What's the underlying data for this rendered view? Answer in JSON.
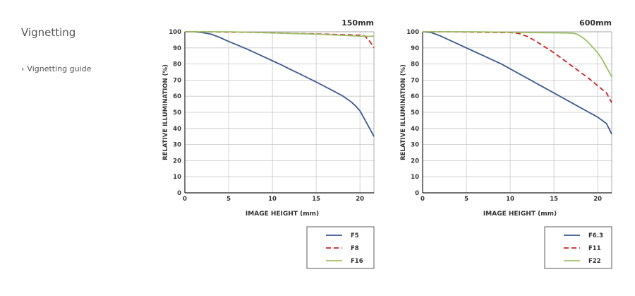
{
  "sidebar": {
    "title": "Vignetting",
    "link_label": "Vignetting guide",
    "link_chevron": "›"
  },
  "chart_data": [
    {
      "type": "line",
      "title": "150mm",
      "xlabel": "IMAGE HEIGHT (mm)",
      "ylabel": "RELATIVE ILLUMINATION (%)",
      "xlim": [
        0,
        21.6
      ],
      "ylim": [
        0,
        100
      ],
      "xticks": [
        0,
        5,
        10,
        15,
        20
      ],
      "yticks": [
        0,
        10,
        20,
        30,
        40,
        50,
        60,
        70,
        80,
        90,
        100
      ],
      "grid": true,
      "legend_position": "bottom-right",
      "series": [
        {
          "name": "F5",
          "color": "#3b5a8c",
          "dash": "solid",
          "x": [
            0,
            1,
            2,
            3,
            4,
            5,
            6,
            7,
            8,
            9,
            10,
            11,
            12,
            13,
            14,
            15,
            16,
            17,
            18,
            19,
            19.5,
            20,
            20.5,
            21,
            21.6
          ],
          "y": [
            100,
            100,
            99.5,
            98.5,
            96.5,
            94,
            91.8,
            89.5,
            87,
            84.5,
            82,
            79.5,
            76.8,
            74.2,
            71.5,
            68.8,
            66,
            63.2,
            60.3,
            56.5,
            54,
            51,
            46,
            41,
            35
          ]
        },
        {
          "name": "F8",
          "color": "#cc2222",
          "dash": "dashed",
          "x": [
            0,
            2,
            5,
            8,
            10,
            12,
            15,
            18,
            20,
            20.5,
            21,
            21.6
          ],
          "y": [
            100,
            100,
            99.8,
            99.6,
            99.4,
            99.1,
            98.7,
            98.2,
            97.9,
            97.5,
            95,
            90
          ]
        },
        {
          "name": "F16",
          "color": "#9bbf66",
          "dash": "solid",
          "x": [
            0,
            2,
            5,
            8,
            10,
            12,
            15,
            18,
            20,
            21,
            21.6
          ],
          "y": [
            100,
            100,
            100,
            99.6,
            99.3,
            99,
            98.5,
            97.8,
            97.3,
            97.2,
            97.3
          ]
        }
      ]
    },
    {
      "type": "line",
      "title": "600mm",
      "xlabel": "IMAGE HEIGHT (mm)",
      "ylabel": "RELATIVE ILLUMINATION (%)",
      "xlim": [
        0,
        21.6
      ],
      "ylim": [
        0,
        100
      ],
      "xticks": [
        0,
        5,
        10,
        15,
        20
      ],
      "yticks": [
        0,
        10,
        20,
        30,
        40,
        50,
        60,
        70,
        80,
        90,
        100
      ],
      "grid": true,
      "legend_position": "bottom-right",
      "series": [
        {
          "name": "F6.3",
          "color": "#3b5a8c",
          "dash": "solid",
          "x": [
            0,
            1,
            2,
            3,
            4,
            5,
            6,
            7,
            8,
            9,
            10,
            11,
            12,
            13,
            14,
            15,
            16,
            17,
            18,
            19,
            20,
            20.5,
            21,
            21.6
          ],
          "y": [
            100,
            99.5,
            97.5,
            95,
            92.5,
            90,
            87.5,
            85,
            82.5,
            80,
            77,
            74,
            71,
            68,
            65,
            62,
            59,
            56,
            53,
            50,
            47,
            45,
            43,
            36.5
          ]
        },
        {
          "name": "F11",
          "color": "#cc2222",
          "dash": "dashed",
          "x": [
            0,
            3,
            6,
            9,
            10,
            11,
            12,
            13,
            14,
            15,
            16,
            17,
            18,
            19,
            20,
            21,
            21.6
          ],
          "y": [
            100,
            100,
            99.8,
            99.5,
            99.5,
            99,
            97,
            94,
            90.5,
            87,
            83,
            79,
            75,
            71,
            66.5,
            62,
            56
          ]
        },
        {
          "name": "F22",
          "color": "#9bbf66",
          "dash": "solid",
          "x": [
            0,
            3,
            6,
            9,
            12,
            15,
            16,
            17,
            17.5,
            18,
            18.5,
            19,
            19.5,
            20,
            20.5,
            21,
            21.6
          ],
          "y": [
            100,
            100,
            100,
            99.8,
            99.5,
            99.4,
            99.3,
            99.2,
            98.8,
            97.5,
            95.5,
            93,
            90,
            87,
            83,
            78,
            72
          ]
        }
      ]
    }
  ]
}
